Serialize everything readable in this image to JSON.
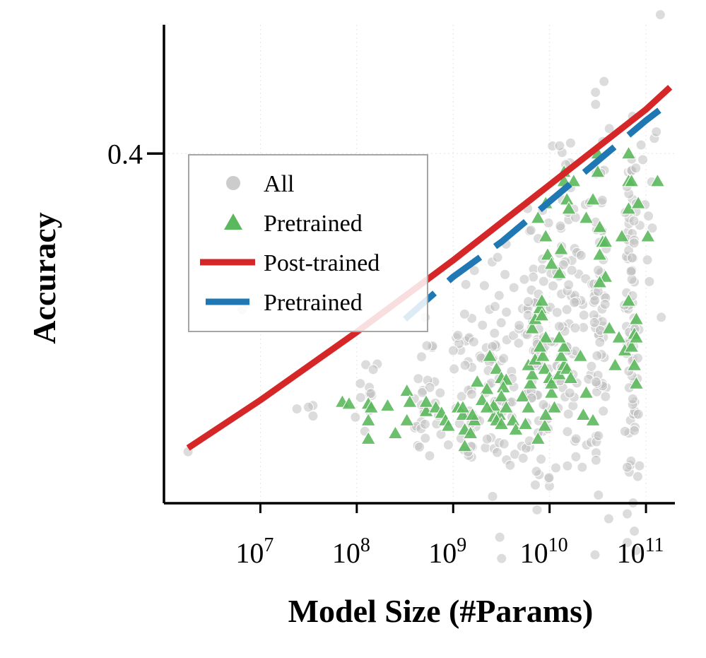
{
  "chart_data": {
    "type": "scatter",
    "xlabel": "Model Size (#Params)",
    "ylabel": "Accuracy",
    "xscale": "log10",
    "xlim_log10": [
      6.0,
      11.3
    ],
    "ylim": [
      0.21,
      0.47
    ],
    "xticks": [
      {
        "exp": 7,
        "label": "10",
        "sup": "7"
      },
      {
        "exp": 8,
        "label": "10",
        "sup": "8"
      },
      {
        "exp": 9,
        "label": "10",
        "sup": "9"
      },
      {
        "exp": 10,
        "label": "10",
        "sup": "10"
      },
      {
        "exp": 11,
        "label": "10",
        "sup": "11"
      }
    ],
    "yticks": [
      {
        "value": 0.4,
        "label": "0.4"
      }
    ],
    "grid": true,
    "legend": {
      "position": "upper-left",
      "entries": [
        {
          "label": "All",
          "marker": "circle",
          "color": "#cccccc"
        },
        {
          "label": "Pretrained",
          "marker": "triangle",
          "color": "#5cb85c"
        },
        {
          "label": "Post-trained",
          "marker": "line",
          "color": "#d62728"
        },
        {
          "label": "Pretrained",
          "marker": "dashed-line",
          "color": "#1f77b4"
        }
      ]
    },
    "series": [
      {
        "name": "Post-trained",
        "kind": "fit-line",
        "color": "#d62728",
        "points": [
          [
            6.25,
            0.24
          ],
          [
            7.0,
            0.266
          ],
          [
            8.0,
            0.303
          ],
          [
            9.0,
            0.342
          ],
          [
            10.0,
            0.383
          ],
          [
            11.0,
            0.424
          ],
          [
            11.25,
            0.436
          ]
        ]
      },
      {
        "name": "Pretrained",
        "kind": "fit-line-dashed",
        "color": "#1f77b4",
        "points": [
          [
            8.5,
            0.31
          ],
          [
            9.0,
            0.333
          ],
          [
            9.5,
            0.352
          ],
          [
            10.0,
            0.374
          ],
          [
            10.5,
            0.396
          ],
          [
            11.0,
            0.418
          ],
          [
            11.15,
            0.424
          ]
        ]
      },
      {
        "name": "Pretrained",
        "kind": "scatter-triangle",
        "color": "#5cb85c",
        "points": [
          [
            7.85,
            0.265
          ],
          [
            7.92,
            0.264
          ],
          [
            8.12,
            0.264
          ],
          [
            8.15,
            0.262
          ],
          [
            8.12,
            0.255
          ],
          [
            8.12,
            0.245
          ],
          [
            8.32,
            0.263
          ],
          [
            8.4,
            0.248
          ],
          [
            8.52,
            0.271
          ],
          [
            8.55,
            0.265
          ],
          [
            8.52,
            0.255
          ],
          [
            8.72,
            0.26
          ],
          [
            8.72,
            0.265
          ],
          [
            8.82,
            0.262
          ],
          [
            8.88,
            0.259
          ],
          [
            8.92,
            0.255
          ],
          [
            8.95,
            0.252
          ],
          [
            9.05,
            0.262
          ],
          [
            9.1,
            0.258
          ],
          [
            9.12,
            0.25
          ],
          [
            9.18,
            0.248
          ],
          [
            9.22,
            0.255
          ],
          [
            9.1,
            0.262
          ],
          [
            9.2,
            0.258
          ],
          [
            9.12,
            0.241
          ],
          [
            9.25,
            0.276
          ],
          [
            9.35,
            0.272
          ],
          [
            9.3,
            0.266
          ],
          [
            9.42,
            0.257
          ],
          [
            9.48,
            0.258
          ],
          [
            9.42,
            0.263
          ],
          [
            9.35,
            0.262
          ],
          [
            9.38,
            0.29
          ],
          [
            9.45,
            0.283
          ],
          [
            9.5,
            0.278
          ],
          [
            9.55,
            0.277
          ],
          [
            9.52,
            0.273
          ],
          [
            9.5,
            0.268
          ],
          [
            9.55,
            0.262
          ],
          [
            9.62,
            0.255
          ],
          [
            9.65,
            0.25
          ],
          [
            9.45,
            0.255
          ],
          [
            9.5,
            0.253
          ],
          [
            9.72,
            0.268
          ],
          [
            9.78,
            0.262
          ],
          [
            9.8,
            0.275
          ],
          [
            9.82,
            0.28
          ],
          [
            9.78,
            0.285
          ],
          [
            9.85,
            0.288
          ],
          [
            9.82,
            0.305
          ],
          [
            9.85,
            0.31
          ],
          [
            9.9,
            0.316
          ],
          [
            9.92,
            0.312
          ],
          [
            9.92,
            0.32
          ],
          [
            9.96,
            0.3
          ],
          [
            9.93,
            0.29
          ],
          [
            9.9,
            0.295
          ],
          [
            9.95,
            0.283
          ],
          [
            10.0,
            0.278
          ],
          [
            10.02,
            0.27
          ],
          [
            10.02,
            0.275
          ],
          [
            10.05,
            0.262
          ],
          [
            9.88,
            0.245
          ],
          [
            9.95,
            0.252
          ],
          [
            9.96,
            0.258
          ],
          [
            9.75,
            0.253
          ],
          [
            10.1,
            0.28
          ],
          [
            10.15,
            0.285
          ],
          [
            10.12,
            0.29
          ],
          [
            10.18,
            0.283
          ],
          [
            10.22,
            0.278
          ],
          [
            10.15,
            0.295
          ],
          [
            10.1,
            0.3
          ],
          [
            10.15,
            0.39
          ],
          [
            10.15,
            0.385
          ],
          [
            10.18,
            0.375
          ],
          [
            10.2,
            0.37
          ],
          [
            10.25,
            0.385
          ],
          [
            10.32,
            0.29
          ],
          [
            10.38,
            0.27
          ],
          [
            10.35,
            0.258
          ],
          [
            10.45,
            0.255
          ],
          [
            9.96,
            0.373
          ],
          [
            9.98,
            0.345
          ],
          [
            9.96,
            0.355
          ],
          [
            9.88,
            0.365
          ],
          [
            10.1,
            0.335
          ],
          [
            10.12,
            0.348
          ],
          [
            10.02,
            0.34
          ],
          [
            10.38,
            0.365
          ],
          [
            10.45,
            0.375
          ],
          [
            10.5,
            0.39
          ],
          [
            10.5,
            0.4
          ],
          [
            10.55,
            0.352
          ],
          [
            10.58,
            0.352
          ],
          [
            10.52,
            0.345
          ],
          [
            10.58,
            0.333
          ],
          [
            10.52,
            0.36
          ],
          [
            10.52,
            0.33
          ],
          [
            10.62,
            0.305
          ],
          [
            10.68,
            0.285
          ],
          [
            10.72,
            0.3
          ],
          [
            10.78,
            0.293
          ],
          [
            10.85,
            0.295
          ],
          [
            10.88,
            0.302
          ],
          [
            10.9,
            0.31
          ],
          [
            10.82,
            0.32
          ],
          [
            10.9,
            0.3
          ],
          [
            10.75,
            0.355
          ],
          [
            10.82,
            0.37
          ],
          [
            10.82,
            0.385
          ],
          [
            10.82,
            0.4
          ],
          [
            10.85,
            0.385
          ],
          [
            10.92,
            0.373
          ],
          [
            11.02,
            0.355
          ],
          [
            11.12,
            0.385
          ],
          [
            10.88,
            0.285
          ],
          [
            10.9,
            0.275
          ]
        ]
      },
      {
        "name": "All",
        "kind": "scatter-circle",
        "color": "#bfbfbf",
        "generate": {
          "seed": 17,
          "clusters": [
            {
              "x": 6.25,
              "y": 0.238,
              "sx": 0.0,
              "sy": 0.0,
              "n": 1
            },
            {
              "x": 6.82,
              "y": 0.315,
              "sx": 0.02,
              "sy": 0.002,
              "n": 2
            },
            {
              "x": 7.5,
              "y": 0.262,
              "sx": 0.08,
              "sy": 0.006,
              "n": 4
            },
            {
              "x": 8.1,
              "y": 0.27,
              "sx": 0.08,
              "sy": 0.01,
              "n": 12
            },
            {
              "x": 8.7,
              "y": 0.268,
              "sx": 0.08,
              "sy": 0.018,
              "n": 30
            },
            {
              "x": 9.15,
              "y": 0.27,
              "sx": 0.1,
              "sy": 0.025,
              "n": 40
            },
            {
              "x": 9.5,
              "y": 0.275,
              "sx": 0.12,
              "sy": 0.03,
              "n": 60
            },
            {
              "x": 9.85,
              "y": 0.29,
              "sx": 0.1,
              "sy": 0.04,
              "n": 80
            },
            {
              "x": 10.2,
              "y": 0.31,
              "sx": 0.12,
              "sy": 0.05,
              "n": 90
            },
            {
              "x": 10.5,
              "y": 0.32,
              "sx": 0.05,
              "sy": 0.05,
              "n": 70
            },
            {
              "x": 10.85,
              "y": 0.31,
              "sx": 0.04,
              "sy": 0.05,
              "n": 90
            },
            {
              "x": 11.1,
              "y": 0.38,
              "sx": 0.08,
              "sy": 0.04,
              "n": 10
            },
            {
              "x": 10.0,
              "y": 0.222,
              "sx": 0.02,
              "sy": 0.005,
              "n": 3
            }
          ]
        }
      }
    ]
  }
}
